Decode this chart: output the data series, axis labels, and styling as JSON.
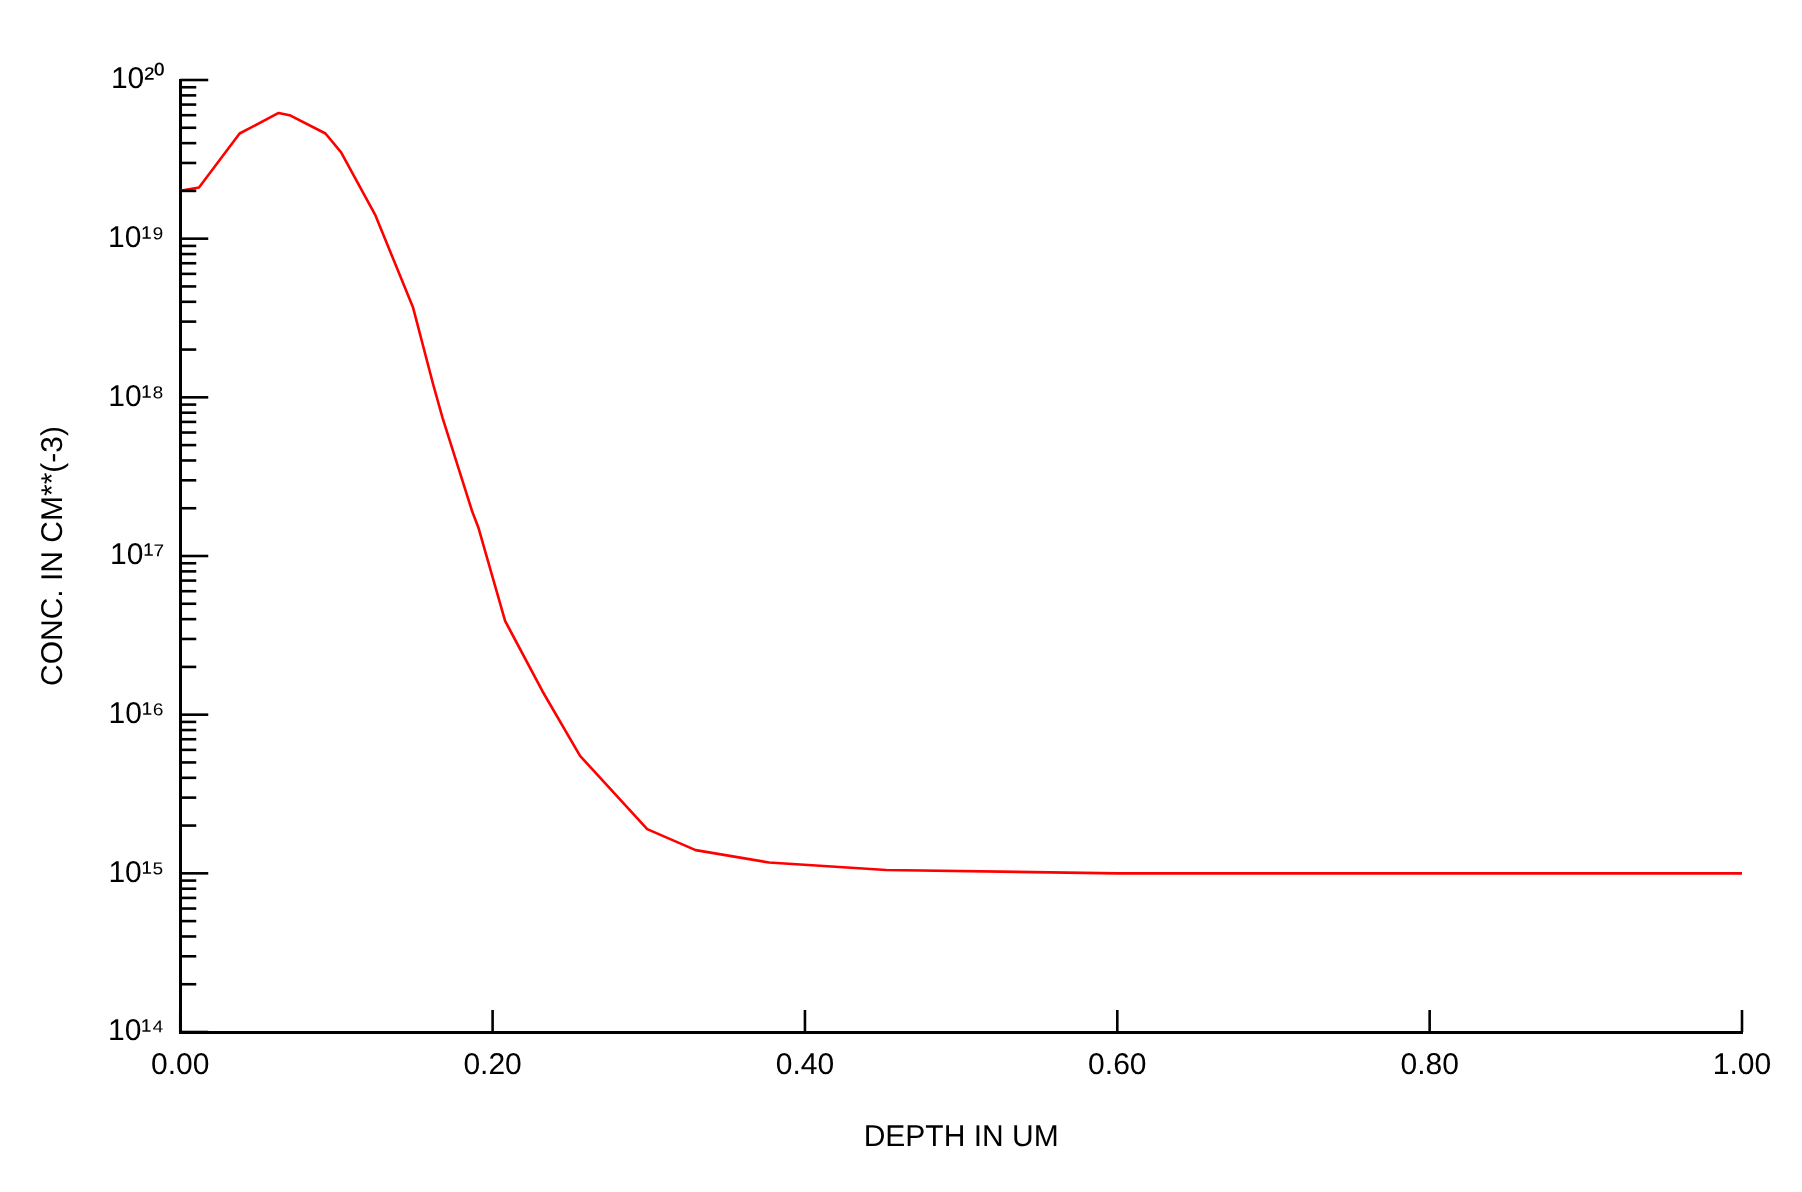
{
  "chart_data": {
    "type": "line",
    "xlabel": "DEPTH IN UM",
    "ylabel": "CONC. IN CM**(-3)",
    "x": [
      0,
      0.012,
      0.038,
      0.063,
      0.07,
      0.093,
      0.103,
      0.125,
      0.149,
      0.162,
      0.168,
      0.187,
      0.191,
      0.208,
      0.232,
      0.256,
      0.299,
      0.33,
      0.377,
      0.452,
      0.6,
      0.8,
      1.0
    ],
    "series": [
      {
        "color": "#ff0000",
        "values": [
          2e+19,
          2.1e+19,
          4.6e+19,
          6.2e+19,
          6e+19,
          4.6e+19,
          3.5e+19,
          1.4e+19,
          3.7e+18,
          1.2e+18,
          7.4e+17,
          1.9e+17,
          1.5e+17,
          3.9e+16,
          1.4e+16,
          5500000000000000.0,
          1900000000000000.0,
          1400000000000000.0,
          1170000000000000.0,
          1050000000000000.0,
          1000000000000000.0,
          1000000000000000.0,
          1000000000000000.0
        ]
      }
    ],
    "log": "y",
    "xlim": [
      0,
      1
    ],
    "ylim": [
      100000000000000.0,
      1e+20
    ],
    "xticks": [
      {
        "value": 0,
        "label": "0.00"
      },
      {
        "value": 0.2,
        "label": "0.20"
      },
      {
        "value": 0.4,
        "label": "0.40"
      },
      {
        "value": 0.6,
        "label": "0.60"
      },
      {
        "value": 0.8,
        "label": "0.80"
      },
      {
        "value": 1,
        "label": "1.00"
      }
    ],
    "yticks": [
      {
        "value": 100000000000000.0,
        "label": "10¹⁴"
      },
      {
        "value": 200000000000000.0,
        "label": null
      },
      {
        "value": 300000000000000.0,
        "label": null
      },
      {
        "value": 400000000000000.0,
        "label": null
      },
      {
        "value": 500000000000000.0,
        "label": null
      },
      {
        "value": 600000000000000.0,
        "label": null
      },
      {
        "value": 700000000000000.0,
        "label": null
      },
      {
        "value": 800000000000000.0,
        "label": null
      },
      {
        "value": 900000000000000.0,
        "label": null
      },
      {
        "value": 1000000000000000.0,
        "label": "10¹⁵"
      },
      {
        "value": 2000000000000000.0,
        "label": null
      },
      {
        "value": 3000000000000000.0,
        "label": null
      },
      {
        "value": 4000000000000000.0,
        "label": null
      },
      {
        "value": 5000000000000000.0,
        "label": null
      },
      {
        "value": 6000000000000000.0,
        "label": null
      },
      {
        "value": 7000000000000000.0,
        "label": null
      },
      {
        "value": 8000000000000000.0,
        "label": null
      },
      {
        "value": 9000000000000000.0,
        "label": null
      },
      {
        "value": 1e+16,
        "label": "10¹⁶"
      },
      {
        "value": 2e+16,
        "label": null
      },
      {
        "value": 3e+16,
        "label": null
      },
      {
        "value": 4e+16,
        "label": null
      },
      {
        "value": 5e+16,
        "label": null
      },
      {
        "value": 6e+16,
        "label": null
      },
      {
        "value": 7e+16,
        "label": null
      },
      {
        "value": 8e+16,
        "label": null
      },
      {
        "value": 9e+16,
        "label": null
      },
      {
        "value": 1e+17,
        "label": "10¹⁷"
      },
      {
        "value": 2e+17,
        "label": null
      },
      {
        "value": 3e+17,
        "label": null
      },
      {
        "value": 4e+17,
        "label": null
      },
      {
        "value": 5e+17,
        "label": null
      },
      {
        "value": 6e+17,
        "label": null
      },
      {
        "value": 7e+17,
        "label": null
      },
      {
        "value": 8e+17,
        "label": null
      },
      {
        "value": 9e+17,
        "label": null
      },
      {
        "value": 1e+18,
        "label": "10¹⁸"
      },
      {
        "value": 2e+18,
        "label": null
      },
      {
        "value": 3e+18,
        "label": null
      },
      {
        "value": 4e+18,
        "label": null
      },
      {
        "value": 5e+18,
        "label": null
      },
      {
        "value": 6e+18,
        "label": null
      },
      {
        "value": 7e+18,
        "label": null
      },
      {
        "value": 8e+18,
        "label": null
      },
      {
        "value": 9e+18,
        "label": null
      },
      {
        "value": 1e+19,
        "label": "10¹⁹"
      },
      {
        "value": 2e+19,
        "label": null
      },
      {
        "value": 3e+19,
        "label": null
      },
      {
        "value": 4e+19,
        "label": null
      },
      {
        "value": 5e+19,
        "label": null
      },
      {
        "value": 6e+19,
        "label": null
      },
      {
        "value": 7e+19,
        "label": null
      },
      {
        "value": 8e+19,
        "label": null
      },
      {
        "value": 9e+19,
        "label": null
      },
      {
        "value": 1e+20,
        "label": "10²⁰"
      }
    ],
    "grid": false,
    "legend": false,
    "marker": "none",
    "line_style": "solid"
  }
}
